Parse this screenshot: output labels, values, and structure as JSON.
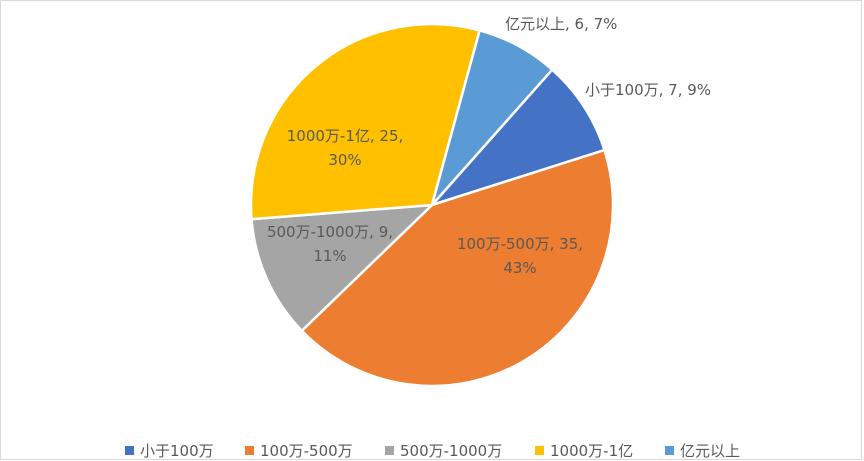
{
  "chart_data": {
    "type": "pie",
    "categories": [
      "小于100万",
      "100万-500万",
      "500万-1000万",
      "1000万-1亿",
      "亿元以上"
    ],
    "values": [
      7,
      35,
      9,
      25,
      6
    ],
    "value_labels": [
      "小于100万, 7, 9%",
      "100万-500万, 35, 43%",
      "500万-1000万, 9, 11%",
      "1000万-1亿, 25, 30%",
      "亿元以上, 6, 7%"
    ],
    "colors": [
      "#4472c4",
      "#ed7d31",
      "#a5a5a5",
      "#ffc000",
      "#5b9bd5"
    ],
    "legend": "bottom"
  }
}
